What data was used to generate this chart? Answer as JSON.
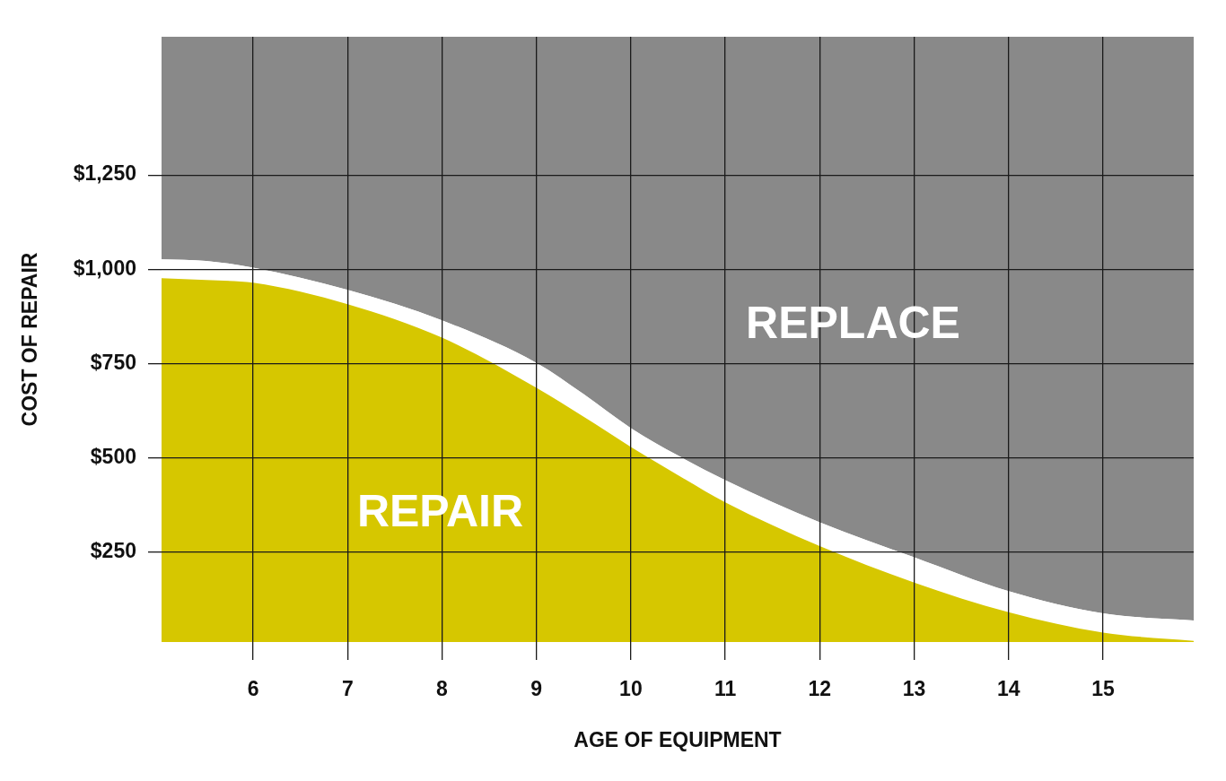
{
  "chart_data": {
    "type": "area",
    "xlabel": "AGE OF EQUIPMENT",
    "ylabel": "COST OF REPAIR",
    "stacked": true,
    "x": [
      5.03,
      5.5,
      6,
      7,
      8,
      9,
      9.5,
      10,
      10.5,
      11,
      12,
      13,
      14,
      15,
      15.96
    ],
    "series": [
      {
        "name": "REPAIR",
        "color": "#d6c700",
        "values": [
          976,
          971,
          964,
          907,
          818,
          685,
          608,
          528,
          453,
          381,
          265,
          168,
          89,
          35,
          13
        ]
      },
      {
        "color": "#ffffff",
        "values": [
          50,
          51,
          40,
          38,
          46,
          66,
          60,
          50,
          52,
          59,
          63,
          67,
          56,
          51,
          54
        ]
      },
      {
        "name": "REPLACE",
        "color": "#898989",
        "values": [
          591,
          595,
          613,
          672,
          753,
          866,
          949,
          1039,
          1112,
          1177,
          1289,
          1382,
          1472,
          1531,
          1550
        ]
      }
    ],
    "xlim": [
      5.03,
      15.96
    ],
    "xticks": [
      6,
      7,
      8,
      9,
      10,
      11,
      12,
      13,
      14,
      15
    ],
    "ylim": [
      10,
      1617
    ],
    "yticks": [
      {
        "value": 250,
        "label": "$250"
      },
      {
        "value": 500,
        "label": "$500"
      },
      {
        "value": 750,
        "label": "$750"
      },
      {
        "value": 1000,
        "label": "$1,000"
      },
      {
        "value": 1250,
        "label": "$1,250"
      }
    ],
    "grid": true
  }
}
